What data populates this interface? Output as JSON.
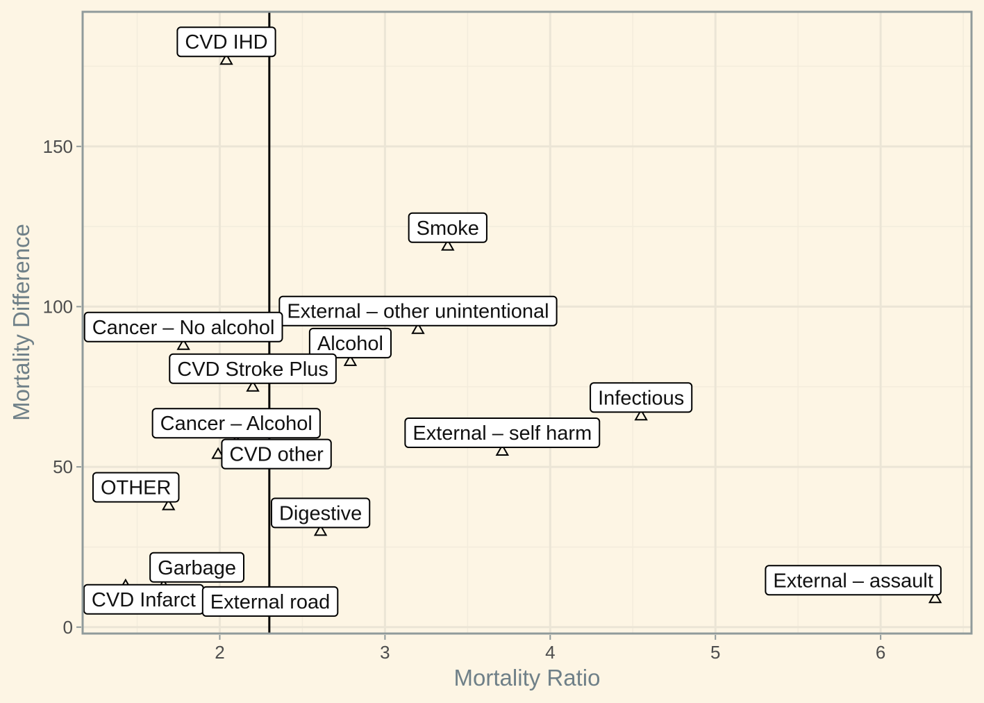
{
  "chart_data": {
    "type": "scatter",
    "xlabel": "Mortality Ratio",
    "ylabel": "Mortality Difference",
    "xlim": [
      1.17,
      6.55
    ],
    "ylim": [
      -2,
      192
    ],
    "x_ticks": [
      2,
      3,
      4,
      5,
      6
    ],
    "y_ticks": [
      0,
      50,
      100,
      150
    ],
    "vline_x": 2.3,
    "grid": true,
    "legend": "none",
    "colors": {
      "panel_bg": "#fdf5e4",
      "grid_major": "#ebe5d6",
      "grid_minor": "#f3ecdc",
      "border": "#909a9b",
      "axis_title": "#6f8088"
    },
    "points": [
      {
        "label": "CVD IHD",
        "x": 2.04,
        "y": 177
      },
      {
        "label": "Smoke",
        "x": 3.38,
        "y": 119
      },
      {
        "label": "External – other unintentional",
        "x": 3.2,
        "y": 93
      },
      {
        "label": "Cancer – No alcohol",
        "x": 1.78,
        "y": 88
      },
      {
        "label": "Alcohol",
        "x": 2.79,
        "y": 83
      },
      {
        "label": "CVD Stroke Plus",
        "x": 2.2,
        "y": 75
      },
      {
        "label": "Infectious",
        "x": 4.55,
        "y": 66
      },
      {
        "label": "Cancer – Alcohol",
        "x": 2.1,
        "y": 58
      },
      {
        "label": "External – self harm",
        "x": 3.71,
        "y": 55
      },
      {
        "label": "CVD other",
        "x": 1.99,
        "y": 54
      },
      {
        "label": "OTHER",
        "x": 1.69,
        "y": 38
      },
      {
        "label": "Digestive",
        "x": 2.61,
        "y": 30
      },
      {
        "label": "Garbage",
        "x": 1.66,
        "y": 13
      },
      {
        "label": "CVD Infarct",
        "x": 1.43,
        "y": 13
      },
      {
        "label": "External road",
        "x": 1.91,
        "y": 8
      },
      {
        "label": "External – assault",
        "x": 6.33,
        "y": 9
      }
    ]
  }
}
